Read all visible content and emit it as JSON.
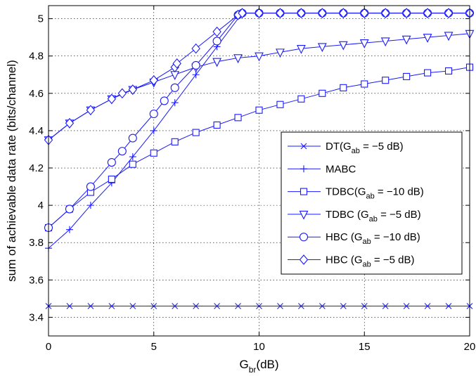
{
  "chart_data": {
    "type": "line",
    "xlabel": {
      "main": "G",
      "sub": "br",
      "suffix": "(dB)"
    },
    "ylabel": "sum of achievable data rate (bits/channel)",
    "xlim": [
      0,
      20
    ],
    "ylim": [
      3.3,
      5.07
    ],
    "xticks": [
      0,
      5,
      10,
      15,
      20
    ],
    "xtick_labels": [
      "0",
      "5",
      "10",
      "15",
      "20"
    ],
    "yticks": [
      3.4,
      3.6,
      3.8,
      4.0,
      4.2,
      4.4,
      4.6,
      4.8,
      5.0
    ],
    "ytick_labels": [
      "3.4",
      "3.6",
      "3.8",
      "4",
      "4.2",
      "4.4",
      "4.6",
      "4.8",
      "5"
    ],
    "grid": true,
    "legend_position": "center-right",
    "line_color": "#1a1aff",
    "series": [
      {
        "name": "DT(G_ab = −5 dB)",
        "legend": {
          "pre": "DT(G",
          "sub": "ab",
          "post": " = −5 dB)"
        },
        "marker": "x",
        "x": [
          0,
          1,
          2,
          3,
          4,
          5,
          6,
          7,
          8,
          9,
          10,
          11,
          12,
          13,
          14,
          15,
          16,
          17,
          18,
          19,
          20
        ],
        "y": [
          3.46,
          3.46,
          3.46,
          3.46,
          3.46,
          3.46,
          3.46,
          3.46,
          3.46,
          3.46,
          3.46,
          3.46,
          3.46,
          3.46,
          3.46,
          3.46,
          3.46,
          3.46,
          3.46,
          3.46,
          3.46
        ]
      },
      {
        "name": "MABC",
        "legend": {
          "pre": "MABC",
          "sub": "",
          "post": ""
        },
        "marker": "plus",
        "x": [
          0,
          1,
          2,
          3,
          4,
          5,
          6,
          7,
          8,
          9.2,
          10,
          11,
          12,
          13,
          14,
          15,
          16,
          17,
          18,
          19,
          20
        ],
        "y": [
          3.77,
          3.87,
          4.0,
          4.12,
          4.26,
          4.4,
          4.55,
          4.7,
          4.85,
          5.03,
          5.03,
          5.03,
          5.03,
          5.03,
          5.03,
          5.03,
          5.03,
          5.03,
          5.03,
          5.03,
          5.03
        ]
      },
      {
        "name": "TDBC(G_ab = −10 dB)",
        "legend": {
          "pre": "TDBC(G",
          "sub": "ab",
          "post": " = −10 dB)"
        },
        "marker": "square",
        "x": [
          0,
          1,
          2,
          3,
          4,
          5,
          6,
          7,
          8,
          9,
          10,
          11,
          12,
          13,
          14,
          15,
          16,
          17,
          18,
          19,
          20
        ],
        "y": [
          3.88,
          3.98,
          4.07,
          4.14,
          4.22,
          4.28,
          4.34,
          4.39,
          4.43,
          4.47,
          4.51,
          4.54,
          4.57,
          4.6,
          4.63,
          4.65,
          4.67,
          4.69,
          4.71,
          4.72,
          4.74
        ]
      },
      {
        "name": "TDBC (G_ab = −5 dB)",
        "legend": {
          "pre": "TDBC (G",
          "sub": "ab",
          "post": " = −5 dB)"
        },
        "marker": "triangle-down",
        "x": [
          0,
          1,
          2,
          3,
          4,
          5,
          6,
          7,
          8,
          9,
          10,
          11,
          12,
          13,
          14,
          15,
          16,
          17,
          18,
          19,
          20
        ],
        "y": [
          4.35,
          4.44,
          4.51,
          4.57,
          4.62,
          4.66,
          4.7,
          4.74,
          4.77,
          4.79,
          4.8,
          4.82,
          4.84,
          4.85,
          4.86,
          4.87,
          4.88,
          4.89,
          4.9,
          4.91,
          4.92
        ]
      },
      {
        "name": "HBC (G_ab = −10 dB)",
        "legend": {
          "pre": "HBC (G",
          "sub": "ab",
          "post": " = −10 dB)"
        },
        "marker": "circle",
        "x": [
          0,
          1,
          2,
          3,
          3.5,
          4,
          5,
          5.5,
          6,
          7,
          8,
          9,
          9.2,
          10,
          11,
          12,
          13,
          14,
          15,
          16,
          17,
          18,
          19,
          20
        ],
        "y": [
          3.88,
          3.98,
          4.1,
          4.23,
          4.29,
          4.36,
          4.49,
          4.56,
          4.63,
          4.75,
          4.88,
          5.02,
          5.03,
          5.03,
          5.03,
          5.03,
          5.03,
          5.03,
          5.03,
          5.03,
          5.03,
          5.03,
          5.03,
          5.03
        ]
      },
      {
        "name": "HBC (G_ab = −5 dB)",
        "legend": {
          "pre": "HBC (G",
          "sub": "ab",
          "post": " = −5 dB)"
        },
        "marker": "diamond",
        "x": [
          0,
          1,
          2,
          3,
          3.5,
          4,
          5,
          6,
          6.1,
          7,
          8,
          9,
          9.2,
          10,
          11,
          12,
          13,
          14,
          15,
          16,
          17,
          18,
          19,
          20
        ],
        "y": [
          4.35,
          4.44,
          4.51,
          4.57,
          4.6,
          4.62,
          4.67,
          4.74,
          4.76,
          4.84,
          4.93,
          5.02,
          5.03,
          5.03,
          5.03,
          5.03,
          5.03,
          5.03,
          5.03,
          5.03,
          5.03,
          5.03,
          5.03,
          5.03
        ]
      }
    ]
  }
}
